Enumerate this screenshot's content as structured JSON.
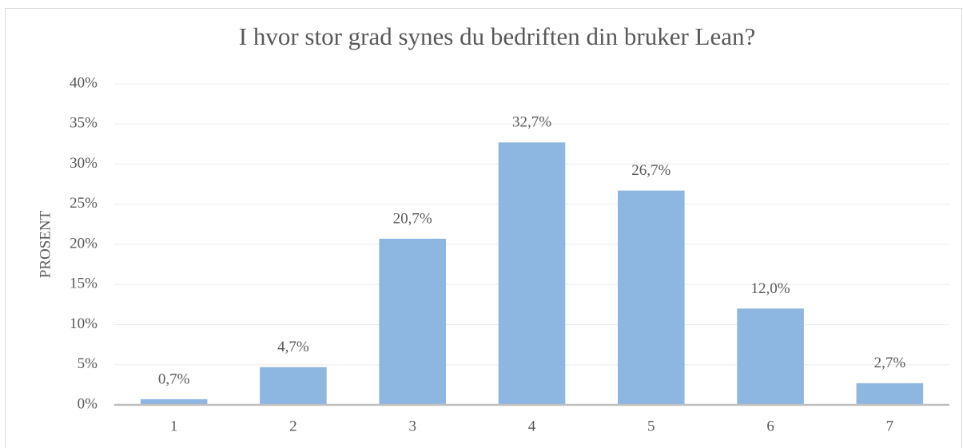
{
  "chart_data": {
    "type": "bar",
    "title": "I hvor stor grad synes du bedriften din bruker Lean?",
    "y_label": "PROSENT",
    "categories": [
      "1",
      "2",
      "3",
      "4",
      "5",
      "6",
      "7"
    ],
    "values": [
      0.7,
      4.7,
      20.7,
      32.7,
      26.7,
      12.0,
      2.7
    ],
    "value_labels": [
      "0,7%",
      "4,7%",
      "20,7%",
      "32,7%",
      "26,7%",
      "12,0%",
      "2,7%"
    ],
    "color": "#8db6e0",
    "ylim": [
      0,
      40
    ],
    "yticks": [
      {
        "value": 0,
        "label": "0%"
      },
      {
        "value": 5,
        "label": "5%"
      },
      {
        "value": 10,
        "label": "10%"
      },
      {
        "value": 15,
        "label": "15%"
      },
      {
        "value": 20,
        "label": "20%"
      },
      {
        "value": 25,
        "label": "25%"
      },
      {
        "value": 30,
        "label": "30%"
      },
      {
        "value": 35,
        "label": "35%"
      },
      {
        "value": 40,
        "label": "40%"
      }
    ],
    "grid": true
  }
}
